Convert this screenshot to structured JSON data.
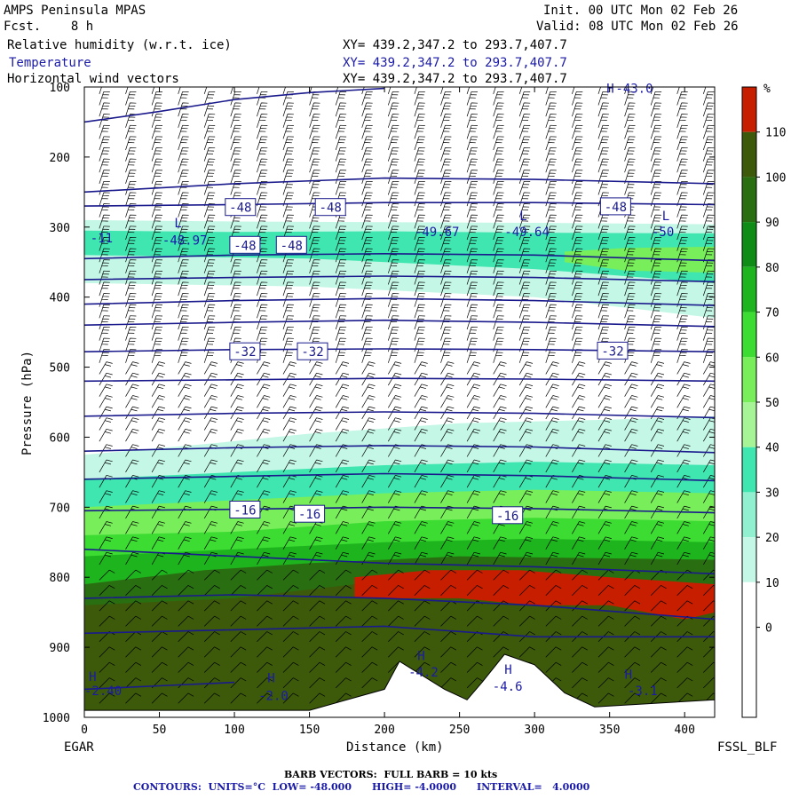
{
  "header": {
    "model": "AMPS Peninsula MPAS",
    "fcst": "Fcst.    8 h",
    "init": "Init. 00 UTC Mon 02 Feb 26",
    "valid": "Valid: 08 UTC Mon 02 Feb 26",
    "fields": [
      {
        "name": "Relative humidity (w.r.t. ice)",
        "xy": "XY= 439.2,347.2 to 293.7,407.7",
        "color": "#000000"
      },
      {
        "name": "Temperature",
        "xy": "XY= 439.2,347.2 to 293.7,407.7",
        "color": "#1a1aa8"
      },
      {
        "name": "Horizontal wind vectors",
        "xy": "XY= 439.2,347.2 to 293.7,407.7",
        "color": "#000000"
      }
    ]
  },
  "chart_data": {
    "type": "heatmap",
    "xlabel": "Distance (km)",
    "ylabel": "Pressure (hPa)",
    "xlim": [
      0,
      420
    ],
    "ylim": [
      1000,
      100
    ],
    "x_ticks": [
      0,
      50,
      100,
      150,
      200,
      250,
      300,
      350,
      400
    ],
    "y_ticks": [
      100,
      200,
      300,
      400,
      500,
      600,
      700,
      800,
      900,
      1000
    ],
    "left_corner_label": "EGAR",
    "right_corner_label": "FSSL_BLF",
    "colorbar": {
      "unit": "%",
      "labels": [
        110,
        100,
        90,
        80,
        70,
        60,
        50,
        40,
        30,
        20,
        10,
        0
      ],
      "colors": [
        "#c81e00",
        "#3c5a0a",
        "#2a6e12",
        "#0e8c16",
        "#1eb41e",
        "#3cdc32",
        "#78ee5a",
        "#a6f496",
        "#40e6b0",
        "#90f0d0",
        "#c4f7e6",
        "#ffffff",
        "#ffffff",
        "#ffffff"
      ]
    },
    "rh_layers": [
      {
        "level": 30,
        "color": "#c4f7e6",
        "top": [
          [
            0,
            290
          ],
          [
            100,
            292
          ],
          [
            200,
            293
          ],
          [
            300,
            294
          ],
          [
            420,
            296
          ]
        ],
        "bottom": [
          [
            0,
            380
          ],
          [
            150,
            385
          ],
          [
            300,
            400
          ],
          [
            420,
            430
          ]
        ]
      },
      {
        "level": 40,
        "color": "#40e6b0",
        "top": [
          [
            0,
            305
          ],
          [
            100,
            307
          ],
          [
            200,
            306
          ],
          [
            300,
            308
          ],
          [
            420,
            309
          ]
        ],
        "bottom": [
          [
            0,
            340
          ],
          [
            150,
            345
          ],
          [
            300,
            360
          ],
          [
            420,
            380
          ]
        ]
      },
      {
        "level": 50,
        "color": "#78ee5a",
        "top": [
          [
            320,
            335
          ],
          [
            360,
            330
          ],
          [
            420,
            328
          ]
        ],
        "bottom": [
          [
            320,
            350
          ],
          [
            360,
            362
          ],
          [
            420,
            365
          ]
        ]
      },
      {
        "level": 30,
        "color": "#c4f7e6",
        "top": [
          [
            0,
            625
          ],
          [
            80,
            610
          ],
          [
            150,
            595
          ],
          [
            250,
            580
          ],
          [
            350,
            575
          ],
          [
            420,
            570
          ]
        ],
        "bottom": [
          [
            0,
            1000
          ],
          [
            420,
            1000
          ]
        ]
      },
      {
        "level": 40,
        "color": "#40e6b0",
        "top": [
          [
            0,
            660
          ],
          [
            100,
            650
          ],
          [
            200,
            640
          ],
          [
            300,
            635
          ],
          [
            420,
            640
          ]
        ],
        "bottom": [
          [
            0,
            1000
          ],
          [
            420,
            1000
          ]
        ]
      },
      {
        "level": 60,
        "color": "#78ee5a",
        "top": [
          [
            0,
            700
          ],
          [
            100,
            690
          ],
          [
            200,
            680
          ],
          [
            300,
            675
          ],
          [
            420,
            680
          ]
        ],
        "bottom": [
          [
            0,
            1000
          ],
          [
            420,
            1000
          ]
        ]
      },
      {
        "level": 70,
        "color": "#3cdc32",
        "top": [
          [
            0,
            740
          ],
          [
            100,
            735
          ],
          [
            200,
            720
          ],
          [
            300,
            715
          ],
          [
            420,
            720
          ]
        ],
        "bottom": [
          [
            0,
            1000
          ],
          [
            420,
            1000
          ]
        ]
      },
      {
        "level": 80,
        "color": "#1eb41e",
        "top": [
          [
            0,
            770
          ],
          [
            100,
            760
          ],
          [
            200,
            750
          ],
          [
            300,
            745
          ],
          [
            420,
            750
          ]
        ],
        "bottom": [
          [
            0,
            1000
          ],
          [
            420,
            1000
          ]
        ]
      },
      {
        "level": 90,
        "color": "#2a6e12",
        "top": [
          [
            0,
            810
          ],
          [
            80,
            790
          ],
          [
            150,
            780
          ],
          [
            250,
            770
          ],
          [
            420,
            775
          ]
        ],
        "bottom": [
          [
            0,
            1000
          ],
          [
            420,
            1000
          ]
        ]
      },
      {
        "level": 100,
        "color": "#3c5a0a",
        "top": [
          [
            0,
            840
          ],
          [
            100,
            830
          ],
          [
            200,
            805
          ],
          [
            300,
            800
          ],
          [
            420,
            815
          ]
        ],
        "bottom": [
          [
            0,
            1000
          ],
          [
            420,
            1000
          ]
        ]
      },
      {
        "level": 110,
        "color": "#c81e00",
        "top": [
          [
            180,
            800
          ],
          [
            230,
            790
          ],
          [
            290,
            790
          ],
          [
            350,
            800
          ],
          [
            420,
            810
          ]
        ],
        "bottom": [
          [
            180,
            830
          ],
          [
            250,
            830
          ],
          [
            300,
            840
          ],
          [
            350,
            840
          ],
          [
            400,
            860
          ],
          [
            420,
            850
          ]
        ]
      }
    ],
    "terrain": [
      [
        0,
        990
      ],
      [
        150,
        990
      ],
      [
        200,
        960
      ],
      [
        210,
        920
      ],
      [
        225,
        940
      ],
      [
        240,
        960
      ],
      [
        255,
        975
      ],
      [
        265,
        950
      ],
      [
        280,
        910
      ],
      [
        300,
        925
      ],
      [
        320,
        965
      ],
      [
        340,
        985
      ],
      [
        380,
        980
      ],
      [
        420,
        975
      ],
      [
        420,
        1000
      ],
      [
        0,
        1000
      ]
    ],
    "temperature_contours": [
      {
        "label": "-48",
        "points": [
          [
            0,
            270
          ],
          [
            100,
            268
          ],
          [
            200,
            265
          ],
          [
            300,
            265
          ],
          [
            420,
            268
          ]
        ]
      },
      {
        "label": "",
        "points": [
          [
            0,
            345
          ],
          [
            100,
            340
          ],
          [
            200,
            338
          ],
          [
            300,
            340
          ],
          [
            420,
            348
          ]
        ]
      },
      {
        "label": "",
        "points": [
          [
            0,
            375
          ],
          [
            100,
            372
          ],
          [
            200,
            370
          ],
          [
            300,
            372
          ],
          [
            420,
            378
          ]
        ]
      },
      {
        "label": "",
        "points": [
          [
            0,
            410
          ],
          [
            100,
            405
          ],
          [
            200,
            402
          ],
          [
            300,
            405
          ],
          [
            420,
            412
          ]
        ]
      },
      {
        "label": "",
        "points": [
          [
            0,
            440
          ],
          [
            100,
            436
          ],
          [
            200,
            433
          ],
          [
            300,
            436
          ],
          [
            420,
            442
          ]
        ]
      },
      {
        "label": "-32",
        "points": [
          [
            0,
            478
          ],
          [
            100,
            475
          ],
          [
            200,
            474
          ],
          [
            300,
            475
          ],
          [
            420,
            478
          ]
        ]
      },
      {
        "label": "",
        "points": [
          [
            0,
            520
          ],
          [
            100,
            518
          ],
          [
            200,
            516
          ],
          [
            300,
            517
          ],
          [
            420,
            520
          ]
        ]
      },
      {
        "label": "",
        "points": [
          [
            0,
            570
          ],
          [
            100,
            566
          ],
          [
            200,
            564
          ],
          [
            300,
            566
          ],
          [
            420,
            572
          ]
        ]
      },
      {
        "label": "",
        "points": [
          [
            0,
            620
          ],
          [
            100,
            615
          ],
          [
            200,
            612
          ],
          [
            300,
            614
          ],
          [
            420,
            622
          ]
        ]
      },
      {
        "label": "",
        "points": [
          [
            0,
            660
          ],
          [
            100,
            656
          ],
          [
            200,
            652
          ],
          [
            300,
            655
          ],
          [
            420,
            662
          ]
        ]
      },
      {
        "label": "-16",
        "points": [
          [
            0,
            705
          ],
          [
            100,
            703
          ],
          [
            200,
            700
          ],
          [
            300,
            702
          ],
          [
            420,
            708
          ]
        ]
      },
      {
        "label": "",
        "points": [
          [
            0,
            760
          ],
          [
            100,
            770
          ],
          [
            200,
            780
          ],
          [
            300,
            785
          ],
          [
            420,
            795
          ]
        ]
      },
      {
        "label": "",
        "points": [
          [
            0,
            830
          ],
          [
            100,
            825
          ],
          [
            200,
            830
          ],
          [
            300,
            840
          ],
          [
            420,
            860
          ]
        ]
      },
      {
        "label": "",
        "points": [
          [
            0,
            880
          ],
          [
            100,
            875
          ],
          [
            200,
            870
          ],
          [
            300,
            885
          ],
          [
            420,
            885
          ]
        ]
      },
      {
        "label": "",
        "points": [
          [
            0,
            960
          ],
          [
            50,
            955
          ],
          [
            100,
            950
          ]
        ]
      },
      {
        "label": "",
        "points": [
          [
            0,
            250
          ],
          [
            100,
            238
          ],
          [
            200,
            230
          ],
          [
            300,
            232
          ],
          [
            420,
            238
          ]
        ]
      },
      {
        "label": "",
        "points": [
          [
            0,
            150
          ],
          [
            50,
            135
          ],
          [
            100,
            118
          ],
          [
            150,
            108
          ],
          [
            200,
            102
          ]
        ]
      }
    ],
    "contour_labels": [
      {
        "text": "-48",
        "x": 104,
        "y": 272
      },
      {
        "text": "-48",
        "x": 164,
        "y": 272
      },
      {
        "text": "-48",
        "x": 354,
        "y": 271
      },
      {
        "text": "-48",
        "x": 107,
        "y": 326
      },
      {
        "text": "-48",
        "x": 138,
        "y": 326
      },
      {
        "text": "-32",
        "x": 107,
        "y": 478
      },
      {
        "text": "-32",
        "x": 152,
        "y": 478
      },
      {
        "text": "-32",
        "x": 352,
        "y": 477
      },
      {
        "text": "-16",
        "x": 107,
        "y": 704
      },
      {
        "text": "-16",
        "x": 150,
        "y": 710
      },
      {
        "text": "-16",
        "x": 282,
        "y": 712
      }
    ],
    "extrema_labels": [
      {
        "text": "L",
        "x": 60,
        "y": 300
      },
      {
        "text": "-48.97",
        "x": 52,
        "y": 325
      },
      {
        "text": "-11",
        "x": 4,
        "y": 322
      },
      {
        "text": "L",
        "x": 290,
        "y": 290
      },
      {
        "text": "-49.67",
        "x": 220,
        "y": 313
      },
      {
        "text": "-49.64",
        "x": 280,
        "y": 313
      },
      {
        "text": "L",
        "x": 385,
        "y": 290
      },
      {
        "text": "-50",
        "x": 378,
        "y": 313
      },
      {
        "text": "H",
        "x": 222,
        "y": 918
      },
      {
        "text": "-4.2",
        "x": 216,
        "y": 942
      },
      {
        "text": "H",
        "x": 280,
        "y": 938
      },
      {
        "text": "-4.6",
        "x": 272,
        "y": 962
      },
      {
        "text": "H",
        "x": 122,
        "y": 950
      },
      {
        "text": "-2.0",
        "x": 116,
        "y": 975
      },
      {
        "text": "H",
        "x": 3,
        "y": 948
      },
      {
        "text": "-2.40",
        "x": 0,
        "y": 968
      },
      {
        "text": "H",
        "x": 360,
        "y": 945
      },
      {
        "text": "-3.1",
        "x": 362,
        "y": 968
      },
      {
        "text": "H",
        "x": 348,
        "y": 108
      },
      {
        "text": "-43.0",
        "x": 354,
        "y": 108
      }
    ]
  },
  "footer": {
    "barb_line": "BARB VECTORS:  FULL BARB = 10 kts",
    "contours_line": "CONTOURS:  UNITS=°C  LOW= -48.000      HIGH= -4.0000      INTERVAL=   4.0000"
  }
}
